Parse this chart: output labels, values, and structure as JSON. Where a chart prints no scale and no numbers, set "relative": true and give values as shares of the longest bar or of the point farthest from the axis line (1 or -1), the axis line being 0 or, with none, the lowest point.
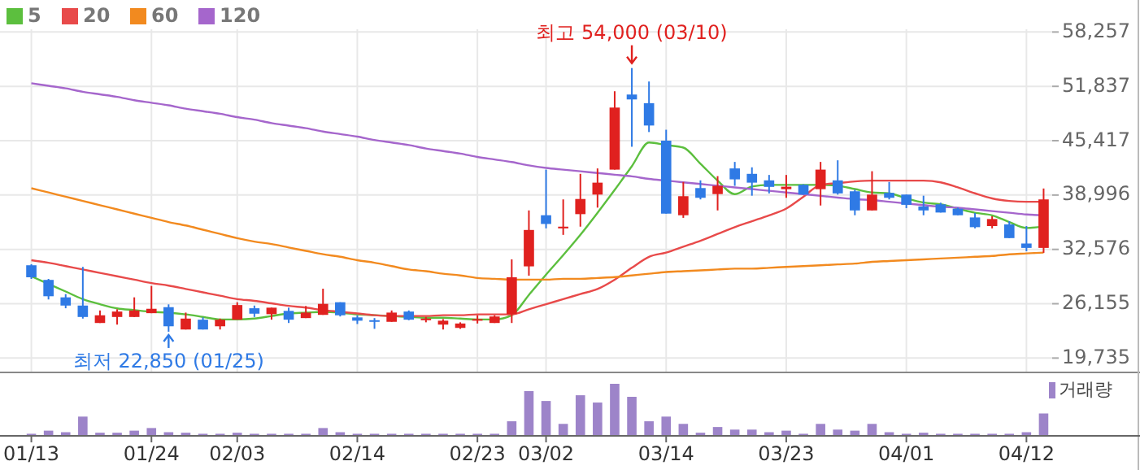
{
  "chart_data": [
    {
      "type": "candlestick",
      "categories": [
        null,
        null,
        null,
        null,
        null,
        null,
        null,
        null,
        null,
        null,
        null,
        null,
        null,
        null,
        null,
        null,
        null,
        null,
        null,
        null,
        null,
        null,
        null,
        null,
        null,
        null,
        null,
        null,
        null,
        null,
        null,
        null,
        null,
        null,
        null,
        null,
        null,
        null,
        null,
        null,
        null,
        null,
        null,
        null,
        null,
        null,
        null,
        null,
        null,
        null,
        null,
        null,
        null,
        null,
        null,
        null,
        null,
        null,
        null,
        null
      ],
      "ohlc": [
        [
          30700,
          30820,
          29090,
          29280
        ],
        [
          28970,
          29090,
          26660,
          27040
        ],
        [
          26910,
          27290,
          25620,
          25940
        ],
        [
          25940,
          30510,
          24400,
          24590
        ],
        [
          23880,
          25360,
          23880,
          24790
        ],
        [
          24590,
          25500,
          23690,
          25230
        ],
        [
          24590,
          26910,
          24590,
          25360
        ],
        [
          25040,
          28260,
          25040,
          25560
        ],
        [
          25750,
          26080,
          22850,
          23490
        ],
        [
          23110,
          25110,
          23110,
          24400
        ],
        [
          24270,
          24540,
          23110,
          23110
        ],
        [
          23490,
          24400,
          23110,
          24270
        ],
        [
          24270,
          26330,
          24270,
          26000
        ],
        [
          25620,
          25940,
          24590,
          24980
        ],
        [
          24920,
          25690,
          24270,
          25690
        ],
        [
          25310,
          25690,
          23880,
          24270
        ],
        [
          24460,
          25890,
          24460,
          25110
        ],
        [
          24840,
          27930,
          24840,
          26140
        ],
        [
          26330,
          26330,
          24650,
          24790
        ],
        [
          24540,
          24790,
          23760,
          24150
        ],
        [
          24210,
          24460,
          23190,
          24020
        ],
        [
          24020,
          25360,
          24020,
          25110
        ],
        [
          25230,
          25360,
          24210,
          24270
        ],
        [
          24210,
          24590,
          23960,
          24400
        ],
        [
          23690,
          24340,
          23110,
          24150
        ],
        [
          23300,
          23960,
          23190,
          23820
        ],
        [
          24150,
          24790,
          23820,
          24340
        ],
        [
          23880,
          24790,
          23880,
          24650
        ],
        [
          24920,
          31400,
          23880,
          29280
        ],
        [
          30570,
          37180,
          29470,
          34870
        ],
        [
          36610,
          42000,
          35060,
          35580
        ],
        [
          35060,
          38480,
          34290,
          35260
        ],
        [
          36740,
          41500,
          35260,
          38530
        ],
        [
          39050,
          42140,
          37510,
          40460
        ],
        [
          42000,
          51260,
          42000,
          49330
        ],
        [
          50870,
          54000,
          44700,
          50290
        ],
        [
          49850,
          52410,
          46440,
          47210
        ],
        [
          45420,
          46710,
          36800,
          36800
        ],
        [
          36610,
          40540,
          36300,
          38860
        ],
        [
          39820,
          40730,
          38480,
          38670
        ],
        [
          39110,
          41230,
          37180,
          40080
        ],
        [
          42140,
          42910,
          40080,
          40850
        ],
        [
          41500,
          42270,
          38920,
          40460
        ],
        [
          40730,
          41370,
          39190,
          39960
        ],
        [
          39690,
          41370,
          38670,
          39980
        ],
        [
          40210,
          40270,
          39050,
          39050
        ],
        [
          39690,
          42910,
          37760,
          42000
        ],
        [
          40730,
          43100,
          39050,
          39190
        ],
        [
          39440,
          39630,
          36610,
          37180
        ],
        [
          37180,
          41810,
          37180,
          39050
        ],
        [
          39250,
          40540,
          38480,
          38670
        ],
        [
          39050,
          39050,
          37450,
          37840
        ],
        [
          37650,
          38920,
          36610,
          37180
        ],
        [
          37900,
          38090,
          36930,
          36930
        ],
        [
          37380,
          37510,
          36610,
          36610
        ],
        [
          36350,
          36880,
          35060,
          35200
        ],
        [
          35330,
          36490,
          35060,
          36160
        ],
        [
          35530,
          35910,
          33910,
          33910
        ],
        [
          33270,
          35330,
          32360,
          32750
        ],
        [
          32750,
          39770,
          32170,
          38480
        ]
      ],
      "series": [
        {
          "name": "5",
          "color": "#5cbf3e",
          "type": "line",
          "values": [
            29400,
            28500,
            27600,
            26700,
            26100,
            25600,
            25400,
            25200,
            25100,
            24900,
            24600,
            24300,
            24300,
            24400,
            24700,
            25000,
            25100,
            25200,
            25100,
            24900,
            24800,
            24700,
            24600,
            24500,
            24500,
            24400,
            24300,
            24300,
            24800,
            27200,
            29600,
            31900,
            34300,
            36900,
            39600,
            42400,
            45200,
            44900,
            44600,
            42700,
            40700,
            39100,
            40000,
            40200,
            40200,
            40200,
            40200,
            40100,
            39700,
            39300,
            39200,
            38600,
            38100,
            37900,
            37400,
            36900,
            36600,
            35800,
            35100,
            35300
          ]
        },
        {
          "name": "20",
          "color": "#e84a4a",
          "type": "line",
          "values": [
            31300,
            31000,
            30600,
            30200,
            29800,
            29400,
            29000,
            28600,
            28300,
            27900,
            27500,
            27100,
            26700,
            26500,
            26200,
            25900,
            25700,
            25400,
            25200,
            25000,
            24800,
            24700,
            24700,
            24700,
            24800,
            24800,
            24900,
            24900,
            24900,
            25500,
            26100,
            26700,
            27300,
            27900,
            29000,
            30400,
            31700,
            32200,
            32900,
            33600,
            34400,
            35200,
            35900,
            36600,
            37400,
            38800,
            40200,
            40400,
            40600,
            40700,
            40700,
            40700,
            40700,
            40500,
            39900,
            39200,
            38600,
            38300,
            38200,
            38200
          ]
        },
        {
          "name": "60",
          "color": "#f28a1f",
          "type": "line",
          "values": [
            39800,
            39300,
            38800,
            38300,
            37800,
            37300,
            36800,
            36300,
            35800,
            35400,
            34900,
            34400,
            33900,
            33500,
            33200,
            32800,
            32400,
            32000,
            31700,
            31300,
            31000,
            30600,
            30200,
            30000,
            29700,
            29500,
            29200,
            29100,
            29000,
            29000,
            29000,
            29100,
            29100,
            29200,
            29300,
            29500,
            29700,
            29900,
            30000,
            30100,
            30200,
            30300,
            30300,
            30400,
            30500,
            30600,
            30700,
            30800,
            30900,
            31100,
            31200,
            31300,
            31400,
            31500,
            31600,
            31700,
            31800,
            32000,
            32100,
            32200
          ]
        },
        {
          "name": "120",
          "color": "#a566cc",
          "type": "line",
          "values": [
            52200,
            51900,
            51600,
            51200,
            50900,
            50600,
            50200,
            49900,
            49600,
            49200,
            48900,
            48600,
            48200,
            47900,
            47500,
            47200,
            46900,
            46500,
            46200,
            45900,
            45500,
            45200,
            44900,
            44500,
            44200,
            43900,
            43500,
            43200,
            42900,
            42500,
            42200,
            42000,
            41800,
            41600,
            41400,
            41200,
            40900,
            40700,
            40500,
            40300,
            40100,
            39900,
            39700,
            39500,
            39300,
            39100,
            38900,
            38700,
            38500,
            38400,
            38200,
            38000,
            37800,
            37600,
            37500,
            37300,
            37100,
            36900,
            36700,
            36600
          ]
        }
      ],
      "ylim": [
        18040,
        58580
      ],
      "yticks": [
        {
          "value": 19735,
          "label": "19,735"
        },
        {
          "value": 26155,
          "label": "26,155"
        },
        {
          "value": 32576,
          "label": "32,576"
        },
        {
          "value": 38996,
          "label": "38,996"
        },
        {
          "value": 45417,
          "label": "45,417"
        },
        {
          "value": 51837,
          "label": "51,837"
        },
        {
          "value": 58257,
          "label": "58,257"
        }
      ],
      "grid": true,
      "legend": "top left",
      "tick_labels": "y",
      "annotations": [
        {
          "text": "최고 54,000 (03/10)",
          "y": 54000
        },
        {
          "text": "최저 22,850 (01/25)",
          "y": 22850
        }
      ]
    },
    {
      "type": "bar",
      "categories": [
        "01/13",
        null,
        null,
        null,
        null,
        null,
        null,
        "01/24",
        null,
        null,
        null,
        null,
        "02/03",
        null,
        null,
        null,
        null,
        null,
        null,
        "02/14",
        null,
        null,
        null,
        null,
        null,
        null,
        "02/23",
        null,
        null,
        null,
        "03/02",
        null,
        null,
        null,
        null,
        null,
        null,
        "03/14",
        null,
        null,
        null,
        null,
        null,
        null,
        "03/23",
        null,
        null,
        null,
        null,
        null,
        null,
        "04/01",
        null,
        null,
        null,
        null,
        null,
        null,
        "04/12",
        null
      ],
      "series": [
        {
          "name": "거래량",
          "color": "#9d84c9",
          "values": [
            0.04,
            0.1,
            0.07,
            0.37,
            0.06,
            0.06,
            0.1,
            0.15,
            0.07,
            0.06,
            0.04,
            0.04,
            0.06,
            0.04,
            0.04,
            0.04,
            0.04,
            0.15,
            0.07,
            0.04,
            0.04,
            0.04,
            0.04,
            0.04,
            0.04,
            0.04,
            0.04,
            0.04,
            0.28,
            0.86,
            0.67,
            0.23,
            0.78,
            0.64,
            1,
            0.75,
            0.28,
            0.37,
            0.23,
            0.06,
            0.17,
            0.12,
            0.12,
            0.07,
            0.1,
            0.04,
            0.23,
            0.12,
            0.1,
            0.23,
            0.07,
            0.04,
            0.06,
            0.04,
            0.04,
            0.04,
            0.04,
            0.04,
            0.07,
            0.43
          ]
        }
      ],
      "relative": true,
      "legend": "top right",
      "tick_labels": "x"
    }
  ]
}
